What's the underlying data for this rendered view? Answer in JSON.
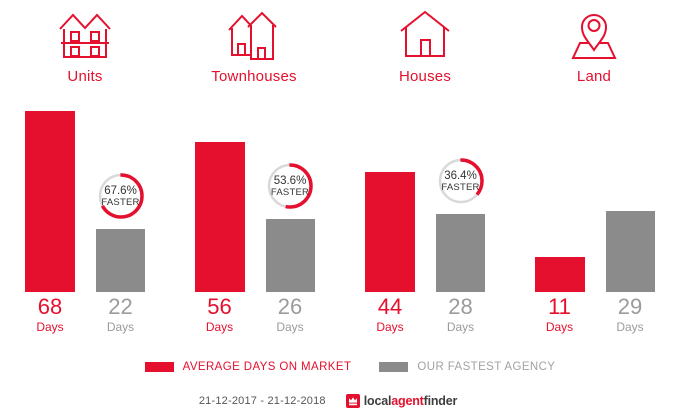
{
  "chart_data": {
    "type": "bar",
    "title": "",
    "categories": [
      "Units",
      "Townhouses",
      "Houses",
      "Land"
    ],
    "unit_label": "Days",
    "series": [
      {
        "name": "AVERAGE DAYS ON MARKET",
        "color": "#e5102e",
        "values": [
          68,
          56,
          44,
          11
        ]
      },
      {
        "name": "OUR FASTEST AGENCY",
        "color": "#8b8b8b",
        "values": [
          22,
          26,
          28,
          29
        ]
      }
    ],
    "faster_badges": [
      {
        "category": "Units",
        "percent": 67.6,
        "text": "67.6%",
        "sub": "FASTER"
      },
      {
        "category": "Townhouses",
        "percent": 53.6,
        "text": "53.6%",
        "sub": "FASTER"
      },
      {
        "category": "Houses",
        "percent": 36.4,
        "text": "36.4%",
        "sub": "FASTER"
      },
      null
    ],
    "ylim": [
      0,
      70
    ],
    "grid": false,
    "legend_position": "bottom"
  },
  "icons": {
    "units": "units-duplex-icon",
    "townhouses": "townhouses-icon",
    "houses": "house-icon",
    "land": "land-map-pin-icon"
  },
  "footer": {
    "date_range": "21-12-2017 - 21-12-2018",
    "logo": {
      "part1": "local",
      "part2": "agent",
      "part3": "finder"
    }
  },
  "colors": {
    "brand_red": "#e5102e",
    "bar_gray": "#8b8b8b",
    "badge_ring_gray": "#d9d9d9"
  }
}
